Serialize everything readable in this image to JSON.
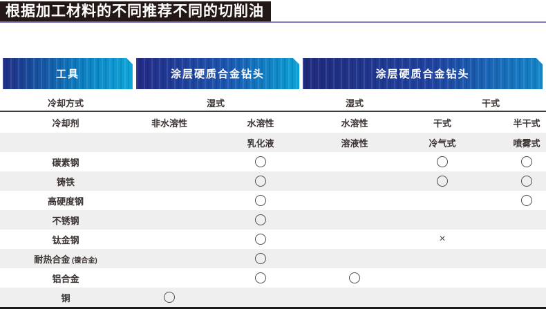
{
  "title": {
    "text": "根据加工材料的不同推荐不同的切削油"
  },
  "header_bars": {
    "tool": "工具",
    "coated_carbide_left": "涂层硬质合金钻头",
    "coated_carbide_right": "涂层硬质合金钻头"
  },
  "table": {
    "cooling_method": {
      "label": "冷却方式",
      "wet_group": "湿式",
      "wet_single": "湿式",
      "dry_group": "干式"
    },
    "coolant": {
      "label": "冷却剂",
      "c1": "非水溶性",
      "c2": "水溶性",
      "c3": "水溶性",
      "c4": "干式",
      "c5": "半干式"
    },
    "subtype": {
      "c2": "乳化液",
      "c3": "溶液性",
      "c4": "冷气式",
      "c5": "喷雾式"
    },
    "symbols": {
      "recommended": "○",
      "not_recommended": "×"
    },
    "materials": [
      {
        "name": "碳素钢",
        "note": "",
        "marks": [
          "",
          "circle",
          "",
          "circle",
          "circle"
        ]
      },
      {
        "name": "铸铁",
        "note": "",
        "marks": [
          "",
          "circle",
          "",
          "circle",
          "circle"
        ]
      },
      {
        "name": "高硬度钢",
        "note": "",
        "marks": [
          "",
          "circle",
          "",
          "",
          "circle"
        ]
      },
      {
        "name": "不锈钢",
        "note": "",
        "marks": [
          "",
          "circle",
          "",
          "",
          ""
        ]
      },
      {
        "name": "钛金钢",
        "note": "",
        "marks": [
          "",
          "circle",
          "",
          "cross",
          ""
        ]
      },
      {
        "name": "耐热合金",
        "note": "(镍合金)",
        "marks": [
          "",
          "circle",
          "",
          "",
          ""
        ]
      },
      {
        "name": "铝合金",
        "note": "",
        "marks": [
          "",
          "circle",
          "circle",
          "",
          ""
        ]
      },
      {
        "name": "铜",
        "note": "",
        "marks": [
          "circle",
          "",
          "",
          "",
          ""
        ]
      }
    ]
  },
  "colors": {
    "title_bg": "#231815",
    "accent_line": "#827bc2",
    "bar_navy": "#202a7c",
    "bar_cyan": "#0da6d9",
    "bar_blue": "#1386ca",
    "row_alt_bg": "#efefef",
    "text": "#3a3230",
    "divider": "#3b3b3b"
  }
}
